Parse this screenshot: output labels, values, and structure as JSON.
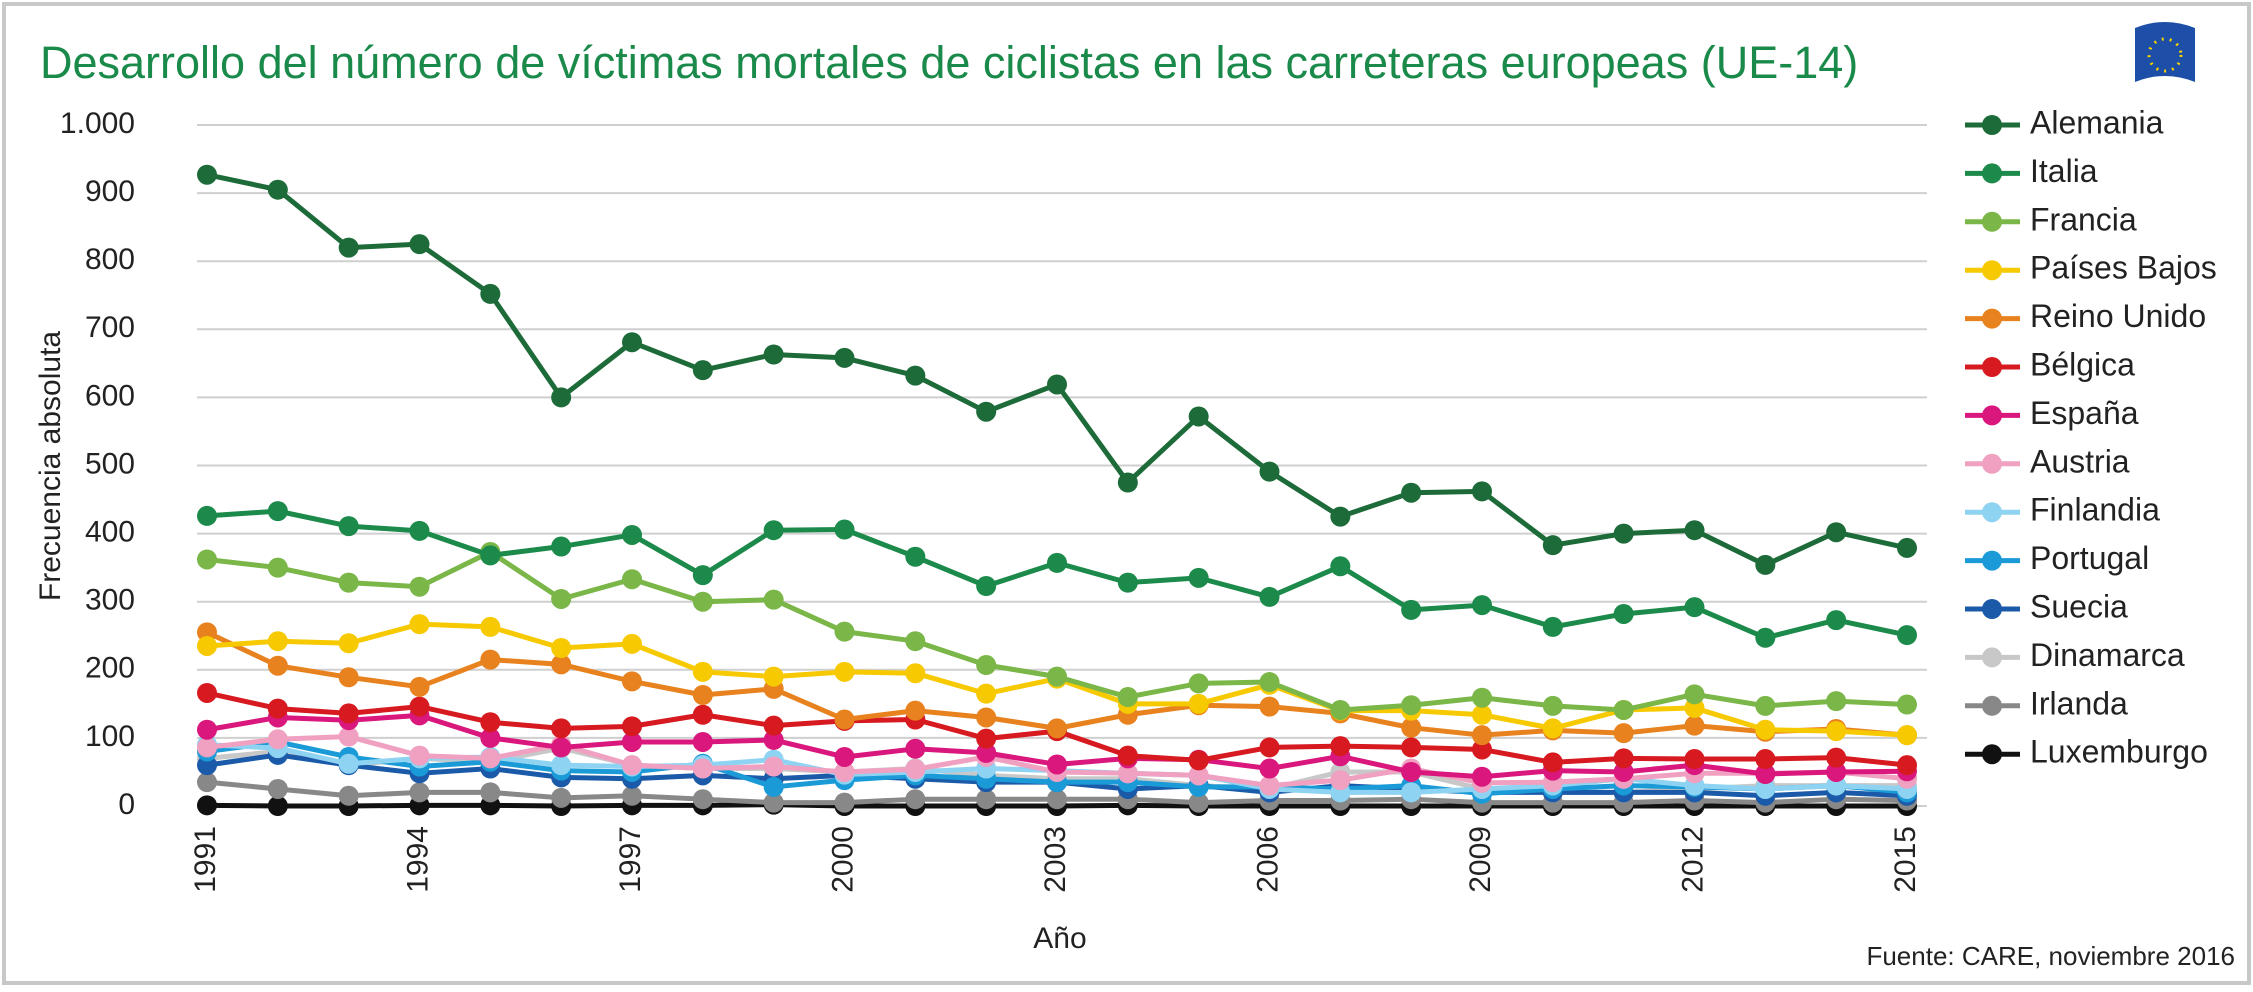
{
  "chart_data": {
    "type": "line",
    "title": "Desarrollo del número de víctimas mortales de ciclistas en las carreteras europeas (UE-14)",
    "x_label": "Año",
    "y_label": "Frecuencia absoluta",
    "source": "Fuente: CARE, noviembre 2016",
    "x": [
      1991,
      1992,
      1993,
      1994,
      1995,
      1996,
      1997,
      1998,
      1999,
      2000,
      2001,
      2002,
      2003,
      2004,
      2005,
      2006,
      2007,
      2008,
      2009,
      2010,
      2011,
      2012,
      2013,
      2014,
      2015
    ],
    "xlim": [
      1991,
      2015
    ],
    "xticks": [
      1991,
      1994,
      1997,
      2000,
      2003,
      2006,
      2009,
      2012,
      2015
    ],
    "ylim": [
      0,
      1000
    ],
    "yticks": [
      0,
      100,
      200,
      300,
      400,
      500,
      600,
      700,
      800,
      900,
      {
        "value": 1000,
        "label": "1.000"
      }
    ],
    "grid": true,
    "legend": "right",
    "series": [
      {
        "name": "Alemania",
        "color": "#1e6b3a",
        "values": [
          927,
          905,
          820,
          825,
          752,
          600,
          681,
          640,
          663,
          658,
          632,
          579,
          619,
          475,
          572,
          491,
          425,
          460,
          462,
          383,
          400,
          405,
          354,
          402,
          379
        ]
      },
      {
        "name": "Italia",
        "color": "#1b8a4a",
        "values": [
          426,
          433,
          411,
          404,
          368,
          381,
          398,
          339,
          405,
          406,
          366,
          323,
          357,
          328,
          335,
          307,
          352,
          288,
          295,
          263,
          282,
          292,
          247,
          273,
          251
        ]
      },
      {
        "name": "Francia",
        "color": "#7ab648",
        "values": [
          362,
          350,
          328,
          322,
          373,
          304,
          333,
          300,
          303,
          256,
          242,
          207,
          190,
          160,
          180,
          182,
          141,
          148,
          159,
          147,
          141,
          164,
          147,
          154,
          149
        ]
      },
      {
        "name": "Países Bajos",
        "color": "#f6c900",
        "values": [
          235,
          242,
          239,
          267,
          263,
          232,
          238,
          197,
          190,
          197,
          195,
          165,
          187,
          150,
          150,
          178,
          140,
          140,
          134,
          114,
          141,
          144,
          112,
          110,
          104
        ]
      },
      {
        "name": "Reino Unido",
        "color": "#e8821e",
        "values": [
          255,
          206,
          189,
          175,
          215,
          208,
          183,
          163,
          172,
          127,
          140,
          130,
          114,
          134,
          148,
          146,
          136,
          115,
          104,
          111,
          107,
          118,
          109,
          113,
          104
        ]
      },
      {
        "name": "Bélgica",
        "color": "#d71920",
        "values": [
          166,
          143,
          136,
          146,
          123,
          114,
          117,
          134,
          118,
          125,
          127,
          99,
          110,
          74,
          67,
          86,
          88,
          86,
          83,
          64,
          70,
          69,
          69,
          71,
          60
        ]
      },
      {
        "name": "España",
        "color": "#d9177c",
        "values": [
          112,
          130,
          126,
          133,
          100,
          86,
          94,
          94,
          97,
          72,
          84,
          78,
          61,
          70,
          68,
          55,
          73,
          50,
          43,
          52,
          50,
          60,
          47,
          50,
          51
        ]
      },
      {
        "name": "Austria",
        "color": "#f0a0c0",
        "values": [
          86,
          98,
          102,
          74,
          70,
          90,
          60,
          55,
          58,
          50,
          54,
          72,
          50,
          48,
          45,
          30,
          38,
          55,
          34,
          35,
          40,
          48,
          48,
          50,
          40
        ]
      },
      {
        "name": "Finlandia",
        "color": "#8fd3f2",
        "values": [
          90,
          85,
          62,
          70,
          72,
          60,
          58,
          60,
          68,
          46,
          50,
          55,
          52,
          48,
          45,
          25,
          20,
          20,
          25,
          30,
          40,
          30,
          25,
          30,
          25
        ]
      },
      {
        "name": "Portugal",
        "color": "#1a9ad6",
        "values": [
          80,
          94,
          72,
          58,
          65,
          52,
          50,
          62,
          28,
          38,
          45,
          40,
          35,
          35,
          28,
          28,
          25,
          30,
          18,
          25,
          30,
          28,
          25,
          30,
          20
        ]
      },
      {
        "name": "Suecia",
        "color": "#1a5aa8",
        "values": [
          60,
          75,
          60,
          48,
          55,
          42,
          40,
          45,
          40,
          45,
          40,
          35,
          35,
          25,
          30,
          20,
          30,
          25,
          20,
          20,
          20,
          20,
          15,
          20,
          15
        ]
      },
      {
        "name": "Dinamarca",
        "color": "#c8c8c8",
        "values": [
          70,
          80,
          60,
          70,
          65,
          85,
          60,
          55,
          55,
          50,
          55,
          45,
          40,
          40,
          30,
          25,
          50,
          50,
          25,
          20,
          20,
          25,
          30,
          30,
          30
        ]
      },
      {
        "name": "Irlanda",
        "color": "#888888",
        "values": [
          35,
          25,
          15,
          20,
          20,
          12,
          15,
          10,
          5,
          5,
          10,
          10,
          10,
          10,
          5,
          8,
          8,
          10,
          5,
          5,
          5,
          8,
          5,
          10,
          8
        ]
      },
      {
        "name": "Luxemburgo",
        "color": "#111111",
        "values": [
          1,
          0,
          0,
          1,
          1,
          0,
          1,
          1,
          2,
          0,
          0,
          0,
          0,
          1,
          0,
          0,
          0,
          0,
          0,
          0,
          0,
          0,
          0,
          0,
          0
        ]
      }
    ]
  }
}
